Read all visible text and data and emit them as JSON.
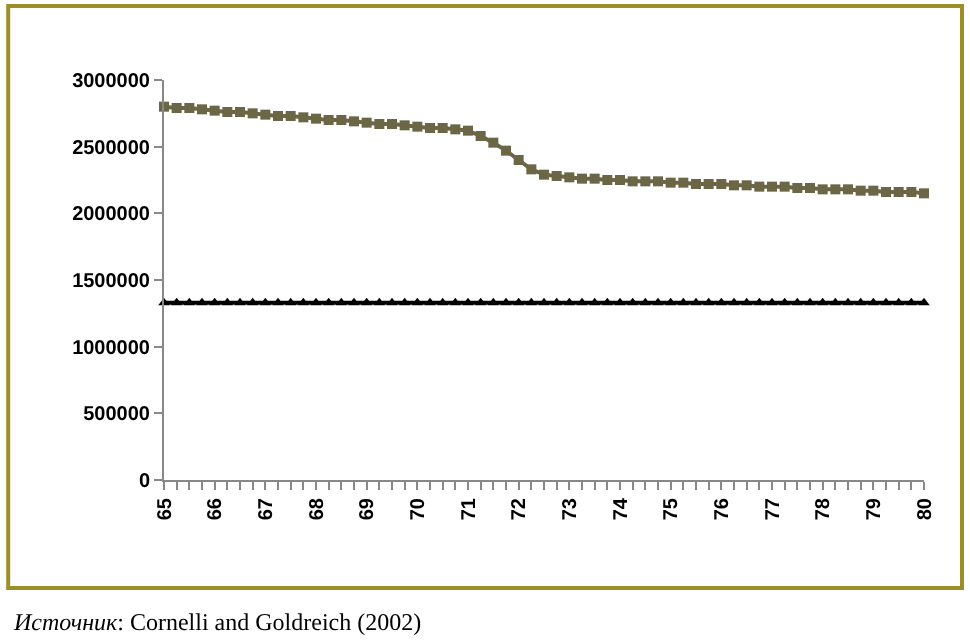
{
  "chart_data": {
    "type": "line",
    "x": [
      65,
      65.25,
      65.5,
      65.75,
      66,
      66.25,
      66.5,
      66.75,
      67,
      67.25,
      67.5,
      67.75,
      68,
      68.25,
      68.5,
      68.75,
      69,
      69.25,
      69.5,
      69.75,
      70,
      70.25,
      70.5,
      70.75,
      71,
      71.25,
      71.5,
      71.75,
      72,
      72.25,
      72.5,
      72.75,
      73,
      73.25,
      73.5,
      73.75,
      74,
      74.25,
      74.5,
      74.75,
      75,
      75.25,
      75.5,
      75.75,
      76,
      76.25,
      76.5,
      76.75,
      77,
      77.25,
      77.5,
      77.75,
      78,
      78.25,
      78.5,
      78.75,
      79,
      79.25,
      79.5,
      79.75,
      80
    ],
    "series": [
      {
        "color": "#6b6645",
        "marker": "square",
        "values": [
          2800000,
          2790000,
          2790000,
          2780000,
          2770000,
          2760000,
          2760000,
          2750000,
          2740000,
          2730000,
          2730000,
          2720000,
          2710000,
          2700000,
          2700000,
          2690000,
          2680000,
          2670000,
          2670000,
          2660000,
          2650000,
          2640000,
          2640000,
          2630000,
          2620000,
          2580000,
          2530000,
          2470000,
          2400000,
          2330000,
          2290000,
          2280000,
          2270000,
          2260000,
          2260000,
          2250000,
          2250000,
          2240000,
          2240000,
          2240000,
          2230000,
          2230000,
          2220000,
          2220000,
          2220000,
          2210000,
          2210000,
          2200000,
          2200000,
          2200000,
          2190000,
          2190000,
          2180000,
          2180000,
          2180000,
          2170000,
          2170000,
          2160000,
          2160000,
          2160000,
          2150000
        ]
      },
      {
        "color": "#000000",
        "marker": "triangle",
        "values": [
          1330000,
          1330000,
          1330000,
          1330000,
          1330000,
          1330000,
          1330000,
          1330000,
          1330000,
          1330000,
          1330000,
          1330000,
          1330000,
          1330000,
          1330000,
          1330000,
          1330000,
          1330000,
          1330000,
          1330000,
          1330000,
          1330000,
          1330000,
          1330000,
          1330000,
          1330000,
          1330000,
          1330000,
          1330000,
          1330000,
          1330000,
          1330000,
          1330000,
          1330000,
          1330000,
          1330000,
          1330000,
          1330000,
          1330000,
          1330000,
          1330000,
          1330000,
          1330000,
          1330000,
          1330000,
          1330000,
          1330000,
          1330000,
          1330000,
          1330000,
          1330000,
          1330000,
          1330000,
          1330000,
          1330000,
          1330000,
          1330000,
          1330000,
          1330000,
          1330000,
          1330000
        ]
      }
    ],
    "xlim": [
      65,
      80
    ],
    "xticks": [
      65,
      {
        "value": 65.25,
        "label": null
      },
      {
        "value": 65.5,
        "label": null
      },
      {
        "value": 65.75,
        "label": null
      },
      66,
      {
        "value": 66.25,
        "label": null
      },
      {
        "value": 66.5,
        "label": null
      },
      {
        "value": 66.75,
        "label": null
      },
      67,
      {
        "value": 67.25,
        "label": null
      },
      {
        "value": 67.5,
        "label": null
      },
      {
        "value": 67.75,
        "label": null
      },
      68,
      {
        "value": 68.25,
        "label": null
      },
      {
        "value": 68.5,
        "label": null
      },
      {
        "value": 68.75,
        "label": null
      },
      69,
      {
        "value": 69.25,
        "label": null
      },
      {
        "value": 69.5,
        "label": null
      },
      {
        "value": 69.75,
        "label": null
      },
      70,
      {
        "value": 70.25,
        "label": null
      },
      {
        "value": 70.5,
        "label": null
      },
      {
        "value": 70.75,
        "label": null
      },
      71,
      {
        "value": 71.25,
        "label": null
      },
      {
        "value": 71.5,
        "label": null
      },
      {
        "value": 71.75,
        "label": null
      },
      72,
      {
        "value": 72.25,
        "label": null
      },
      {
        "value": 72.5,
        "label": null
      },
      {
        "value": 72.75,
        "label": null
      },
      73,
      {
        "value": 73.25,
        "label": null
      },
      {
        "value": 73.5,
        "label": null
      },
      {
        "value": 73.75,
        "label": null
      },
      74,
      {
        "value": 74.25,
        "label": null
      },
      {
        "value": 74.5,
        "label": null
      },
      {
        "value": 74.75,
        "label": null
      },
      75,
      {
        "value": 75.25,
        "label": null
      },
      {
        "value": 75.5,
        "label": null
      },
      {
        "value": 75.75,
        "label": null
      },
      76,
      {
        "value": 76.25,
        "label": null
      },
      {
        "value": 76.5,
        "label": null
      },
      {
        "value": 76.75,
        "label": null
      },
      77,
      {
        "value": 77.25,
        "label": null
      },
      {
        "value": 77.5,
        "label": null
      },
      {
        "value": 77.75,
        "label": null
      },
      78,
      {
        "value": 78.25,
        "label": null
      },
      {
        "value": 78.5,
        "label": null
      },
      {
        "value": 78.75,
        "label": null
      },
      79,
      {
        "value": 79.25,
        "label": null
      },
      {
        "value": 79.5,
        "label": null
      },
      {
        "value": 79.75,
        "label": null
      },
      80
    ],
    "ylim": [
      0,
      3000000
    ],
    "yticks": [
      0,
      500000,
      1000000,
      1500000,
      2000000,
      2500000,
      3000000
    ],
    "line_style": "solid",
    "annotations": [
      "Источник: Cornelli and Goldreich (2002)"
    ]
  }
}
